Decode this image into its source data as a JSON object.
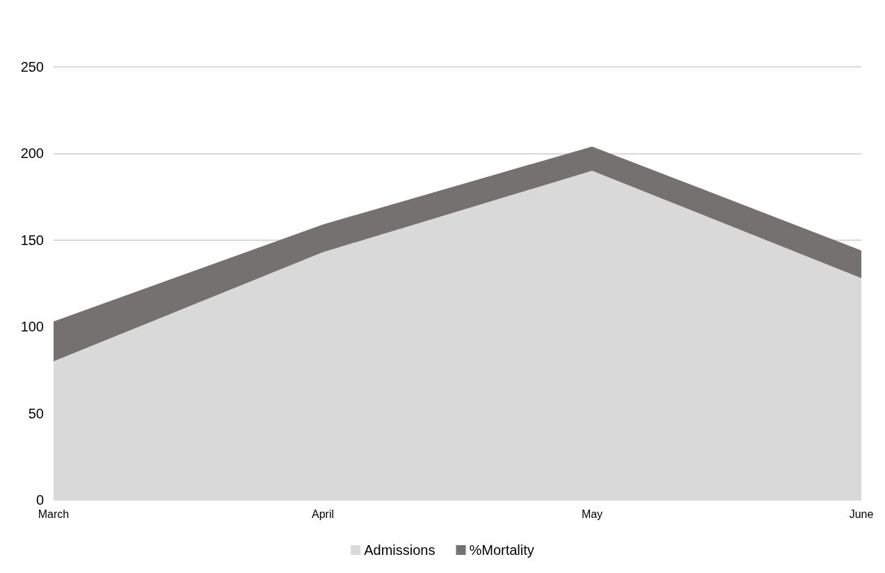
{
  "chart_data": {
    "type": "area",
    "stacked": true,
    "categories": [
      "March",
      "April",
      "May",
      "June"
    ],
    "series": [
      {
        "name": "Admissions",
        "color": "#d9d9d9",
        "values": [
          80,
          143,
          190,
          128
        ]
      },
      {
        "name": "%Mortality",
        "color": "#767171",
        "values": [
          23,
          16,
          14,
          16
        ]
      }
    ],
    "ylim": [
      0,
      250
    ],
    "yticks": [
      0,
      50,
      100,
      150,
      200,
      250
    ],
    "grid": "y",
    "legend": "bottom"
  }
}
